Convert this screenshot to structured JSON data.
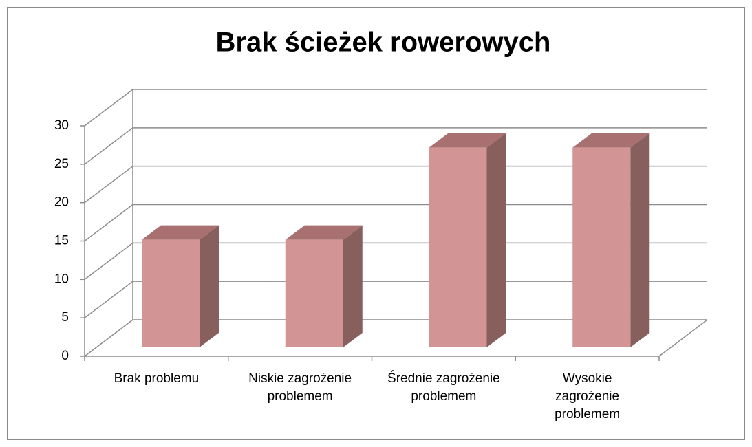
{
  "chart_data": {
    "type": "bar3d",
    "title": "Brak ścieżek rowerowych",
    "categories": [
      "Brak problemu",
      "Niskie zagrożenie problemem",
      "Średnie zagrożenie problemem",
      "Wysokie zagrożenie problemem"
    ],
    "values": [
      14,
      14,
      26,
      26
    ],
    "color": "#d29494",
    "ylim": [
      0,
      30
    ],
    "yticks": [
      0,
      5,
      10,
      15,
      20,
      25,
      30
    ],
    "grid": true
  }
}
